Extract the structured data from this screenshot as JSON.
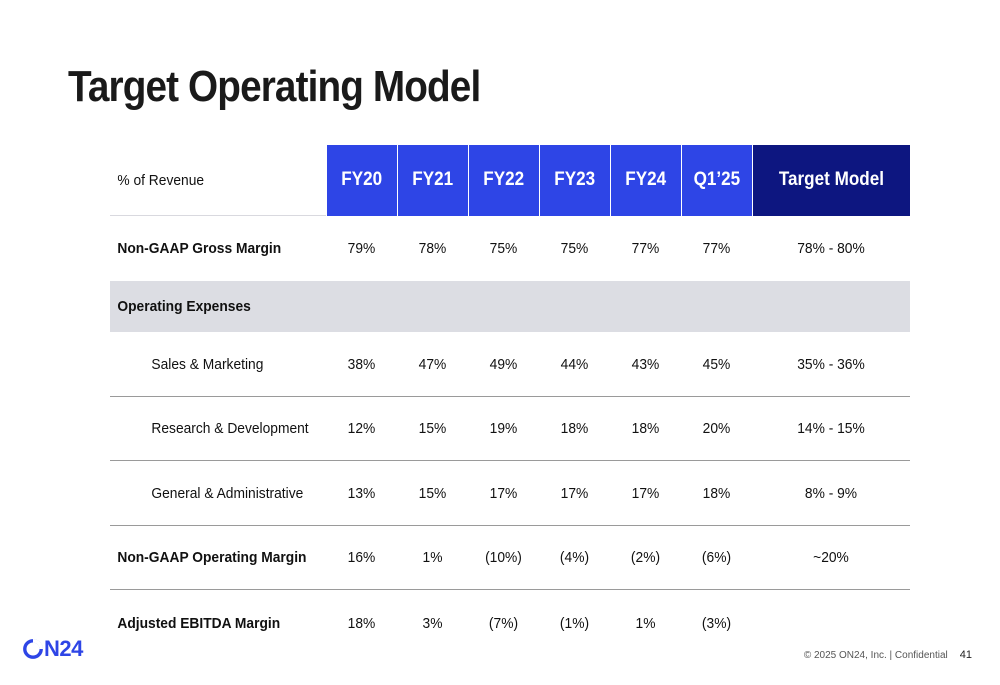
{
  "title": "Target Operating Model",
  "table": {
    "header_label": "% of Revenue",
    "columns": [
      "FY20",
      "FY21",
      "FY22",
      "FY23",
      "FY24",
      "Q1’25",
      "Target Model"
    ],
    "rows": [
      {
        "label": "Non-GAAP Gross Margin",
        "values": [
          "79%",
          "78%",
          "75%",
          "75%",
          "77%",
          "77%",
          "78% - 80%"
        ]
      },
      {
        "label": "Operating Expenses"
      },
      {
        "label": "Sales & Marketing",
        "values": [
          "38%",
          "47%",
          "49%",
          "44%",
          "43%",
          "45%",
          "35% - 36%"
        ]
      },
      {
        "label": "Research &  Development",
        "values": [
          "12%",
          "15%",
          "19%",
          "18%",
          "18%",
          "20%",
          "14% - 15%"
        ]
      },
      {
        "label": "General & Administrative",
        "values": [
          "13%",
          "15%",
          "17%",
          "17%",
          "17%",
          "18%",
          "8% - 9%"
        ]
      },
      {
        "label": "Non-GAAP Operating Margin",
        "values": [
          "16%",
          "1%",
          "(10%)",
          "(4%)",
          "(2%)",
          "(6%)",
          "~20%"
        ]
      },
      {
        "label": "Adjusted EBITDA Margin",
        "values": [
          "18%",
          "3%",
          "(7%)",
          "(1%)",
          "1%",
          "(3%)",
          ""
        ]
      }
    ]
  },
  "footer": {
    "logo_text": "N24",
    "copyright": "© 2025 ON24, Inc.  |  Confidential",
    "page_number": "41"
  },
  "colors": {
    "header_blue": "#2e45e6",
    "header_navy": "#0d1680",
    "band_gray": "#dcdde3"
  }
}
